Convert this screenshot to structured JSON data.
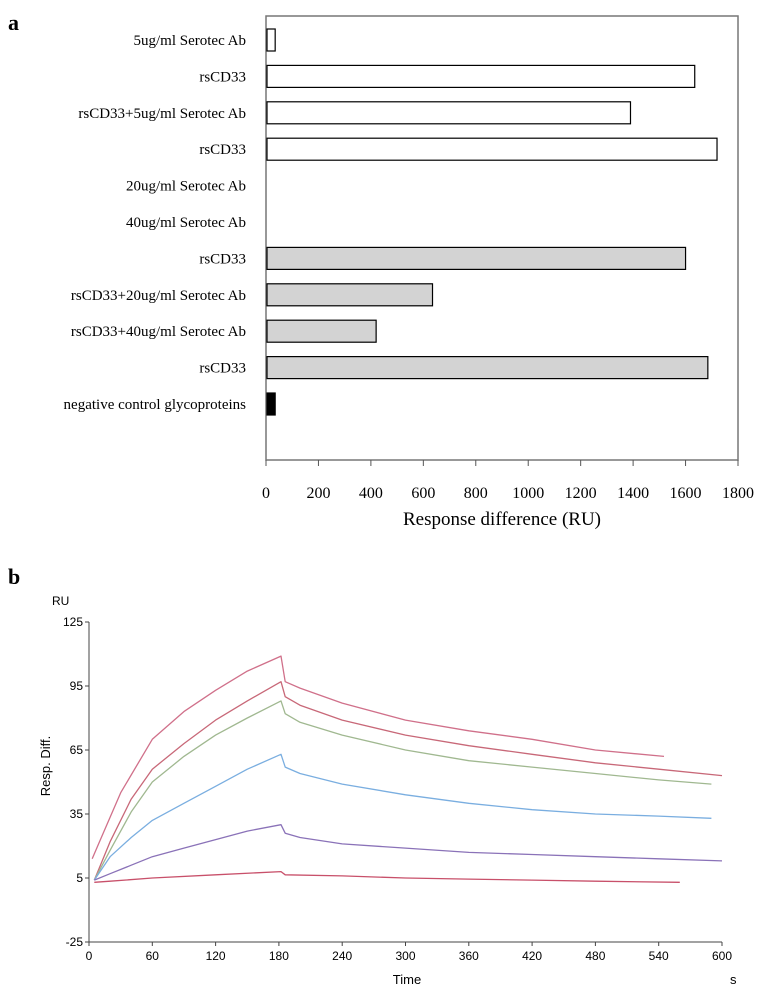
{
  "colors": {
    "bar_white": "#ffffff",
    "bar_grey": "#d3d3d3",
    "bar_black": "#000000",
    "curves": [
      "#d0708a",
      "#c86878",
      "#a0b890",
      "#7aaee0",
      "#8a72b8",
      "#c8506a"
    ]
  },
  "chart_data": [
    {
      "panel_label": "a",
      "type": "bar",
      "orientation": "horizontal",
      "categories": [
        "5ug/ml Serotec Ab",
        "rsCD33",
        "rsCD33+5ug/ml Serotec Ab",
        "rsCD33",
        "20ug/ml Serotec Ab",
        "40ug/ml Serotec Ab",
        "rsCD33",
        "rsCD33+20ug/ml Serotec Ab",
        "rsCD33+40ug/ml Serotec Ab",
        "rsCD33",
        "negative control glycoproteins"
      ],
      "values": [
        35,
        1635,
        1390,
        1720,
        0,
        0,
        1600,
        635,
        420,
        1685,
        35
      ],
      "fills": [
        "white",
        "white",
        "white",
        "white",
        "white",
        "white",
        "grey",
        "grey",
        "grey",
        "grey",
        "black"
      ],
      "xlabel": "Response difference (RU)",
      "ylabel": "",
      "xlim": [
        0,
        1800
      ],
      "xticks": [
        "0",
        "200",
        "400",
        "600",
        "800",
        "1000",
        "1200",
        "1400",
        "1600",
        "1800"
      ],
      "grid": false
    },
    {
      "panel_label": "b",
      "type": "line",
      "xlabel": "Time",
      "x_unit": "s",
      "ylabel": "Resp. Diff.",
      "y_unit": "RU",
      "xlim": [
        0,
        600
      ],
      "ylim": [
        -25,
        125
      ],
      "xticks": [
        "0",
        "60",
        "120",
        "180",
        "240",
        "300",
        "360",
        "420",
        "480",
        "540",
        "600"
      ],
      "yticks": [
        "125",
        "95",
        "65",
        "35",
        "5",
        "-25"
      ],
      "grid": false,
      "series": [
        {
          "x": [
            3,
            10,
            30,
            60,
            90,
            120,
            150,
            182,
            186,
            200,
            240,
            300,
            360,
            420,
            480,
            545
          ],
          "y": [
            14,
            22,
            45,
            70,
            83,
            93,
            102,
            109,
            97,
            94,
            87,
            79,
            74,
            70,
            65,
            62
          ]
        },
        {
          "x": [
            5,
            20,
            40,
            60,
            90,
            120,
            150,
            182,
            186,
            200,
            240,
            300,
            360,
            420,
            480,
            540,
            600
          ],
          "y": [
            4,
            22,
            42,
            56,
            68,
            79,
            88,
            97,
            90,
            86,
            79,
            72,
            67,
            63,
            59,
            56,
            53
          ]
        },
        {
          "x": [
            5,
            20,
            40,
            60,
            90,
            120,
            150,
            182,
            186,
            200,
            240,
            300,
            360,
            420,
            480,
            540,
            590
          ],
          "y": [
            4,
            18,
            36,
            50,
            62,
            72,
            80,
            88,
            82,
            78,
            72,
            65,
            60,
            57,
            54,
            51,
            49
          ]
        },
        {
          "x": [
            5,
            20,
            40,
            60,
            90,
            120,
            150,
            182,
            186,
            200,
            240,
            300,
            360,
            420,
            480,
            540,
            590
          ],
          "y": [
            4,
            15,
            24,
            32,
            40,
            48,
            56,
            63,
            57,
            54,
            49,
            44,
            40,
            37,
            35,
            34,
            33
          ]
        },
        {
          "x": [
            5,
            20,
            40,
            60,
            90,
            120,
            150,
            182,
            186,
            200,
            240,
            300,
            360,
            420,
            480,
            540,
            600
          ],
          "y": [
            4,
            7,
            11,
            15,
            19,
            23,
            27,
            30,
            26,
            24,
            21,
            19,
            17,
            16,
            15,
            14,
            13
          ]
        },
        {
          "x": [
            5,
            20,
            60,
            120,
            182,
            186,
            240,
            300,
            360,
            420,
            480,
            560
          ],
          "y": [
            3,
            3.5,
            5,
            6.5,
            8,
            6.5,
            6,
            5,
            4.5,
            4,
            3.5,
            3
          ]
        }
      ]
    }
  ]
}
